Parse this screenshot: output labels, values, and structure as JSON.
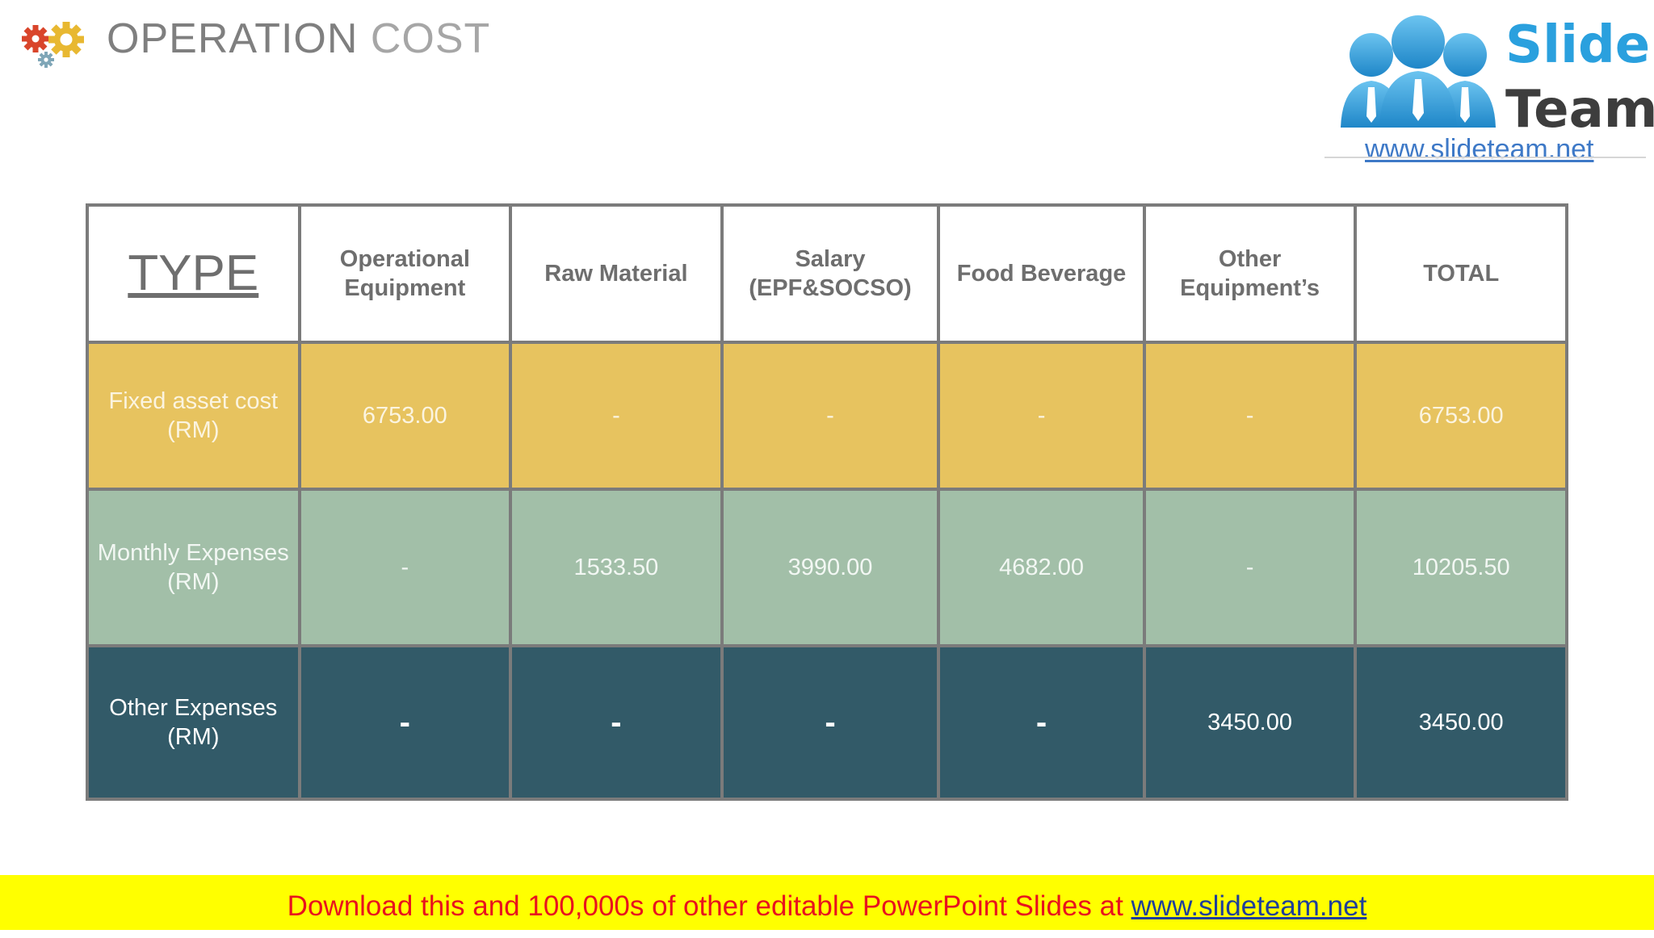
{
  "header": {
    "title_part1": "OPERATION",
    "title_part2": " COST",
    "icon": "gears-icon",
    "colors": {
      "gear_red": "#d9452b",
      "gear_yellow": "#e8b831",
      "gear_blue": "#7fa6b7"
    }
  },
  "logo": {
    "word1": "Slide",
    "word2": "Team",
    "url": "www.slideteam.net",
    "colors": {
      "people": "#2aa0de",
      "slide": "#2aa0de",
      "team": "#3d3d3d"
    }
  },
  "table": {
    "headers": [
      "TYPE",
      "Operational Equipment",
      "Raw Material",
      "Salary (EPF&SOCSO)",
      "Food Beverage",
      "Other Equipment’s",
      "TOTAL"
    ],
    "rows": [
      {
        "label": "Fixed asset cost (RM)",
        "cells": [
          "6753.00",
          "-",
          "-",
          "-",
          "-",
          "6753.00"
        ],
        "color": "#e7c35f"
      },
      {
        "label": "Monthly Expenses (RM)",
        "cells": [
          "-",
          "1533.50",
          "3990.00",
          "4682.00",
          "-",
          "10205.50"
        ],
        "color": "#a2bfa8"
      },
      {
        "label": "Other Expenses (RM)",
        "cells": [
          "-",
          "-",
          "-",
          "-",
          "3450.00",
          "3450.00"
        ],
        "color": "#325a68"
      }
    ]
  },
  "banner": {
    "text": "Download this and 100,000s of other editable PowerPoint Slides at ",
    "link": "www.slideteam.net",
    "colors": {
      "background": "#ffff00",
      "text": "#e8121e",
      "link": "#1f3f9a"
    }
  }
}
